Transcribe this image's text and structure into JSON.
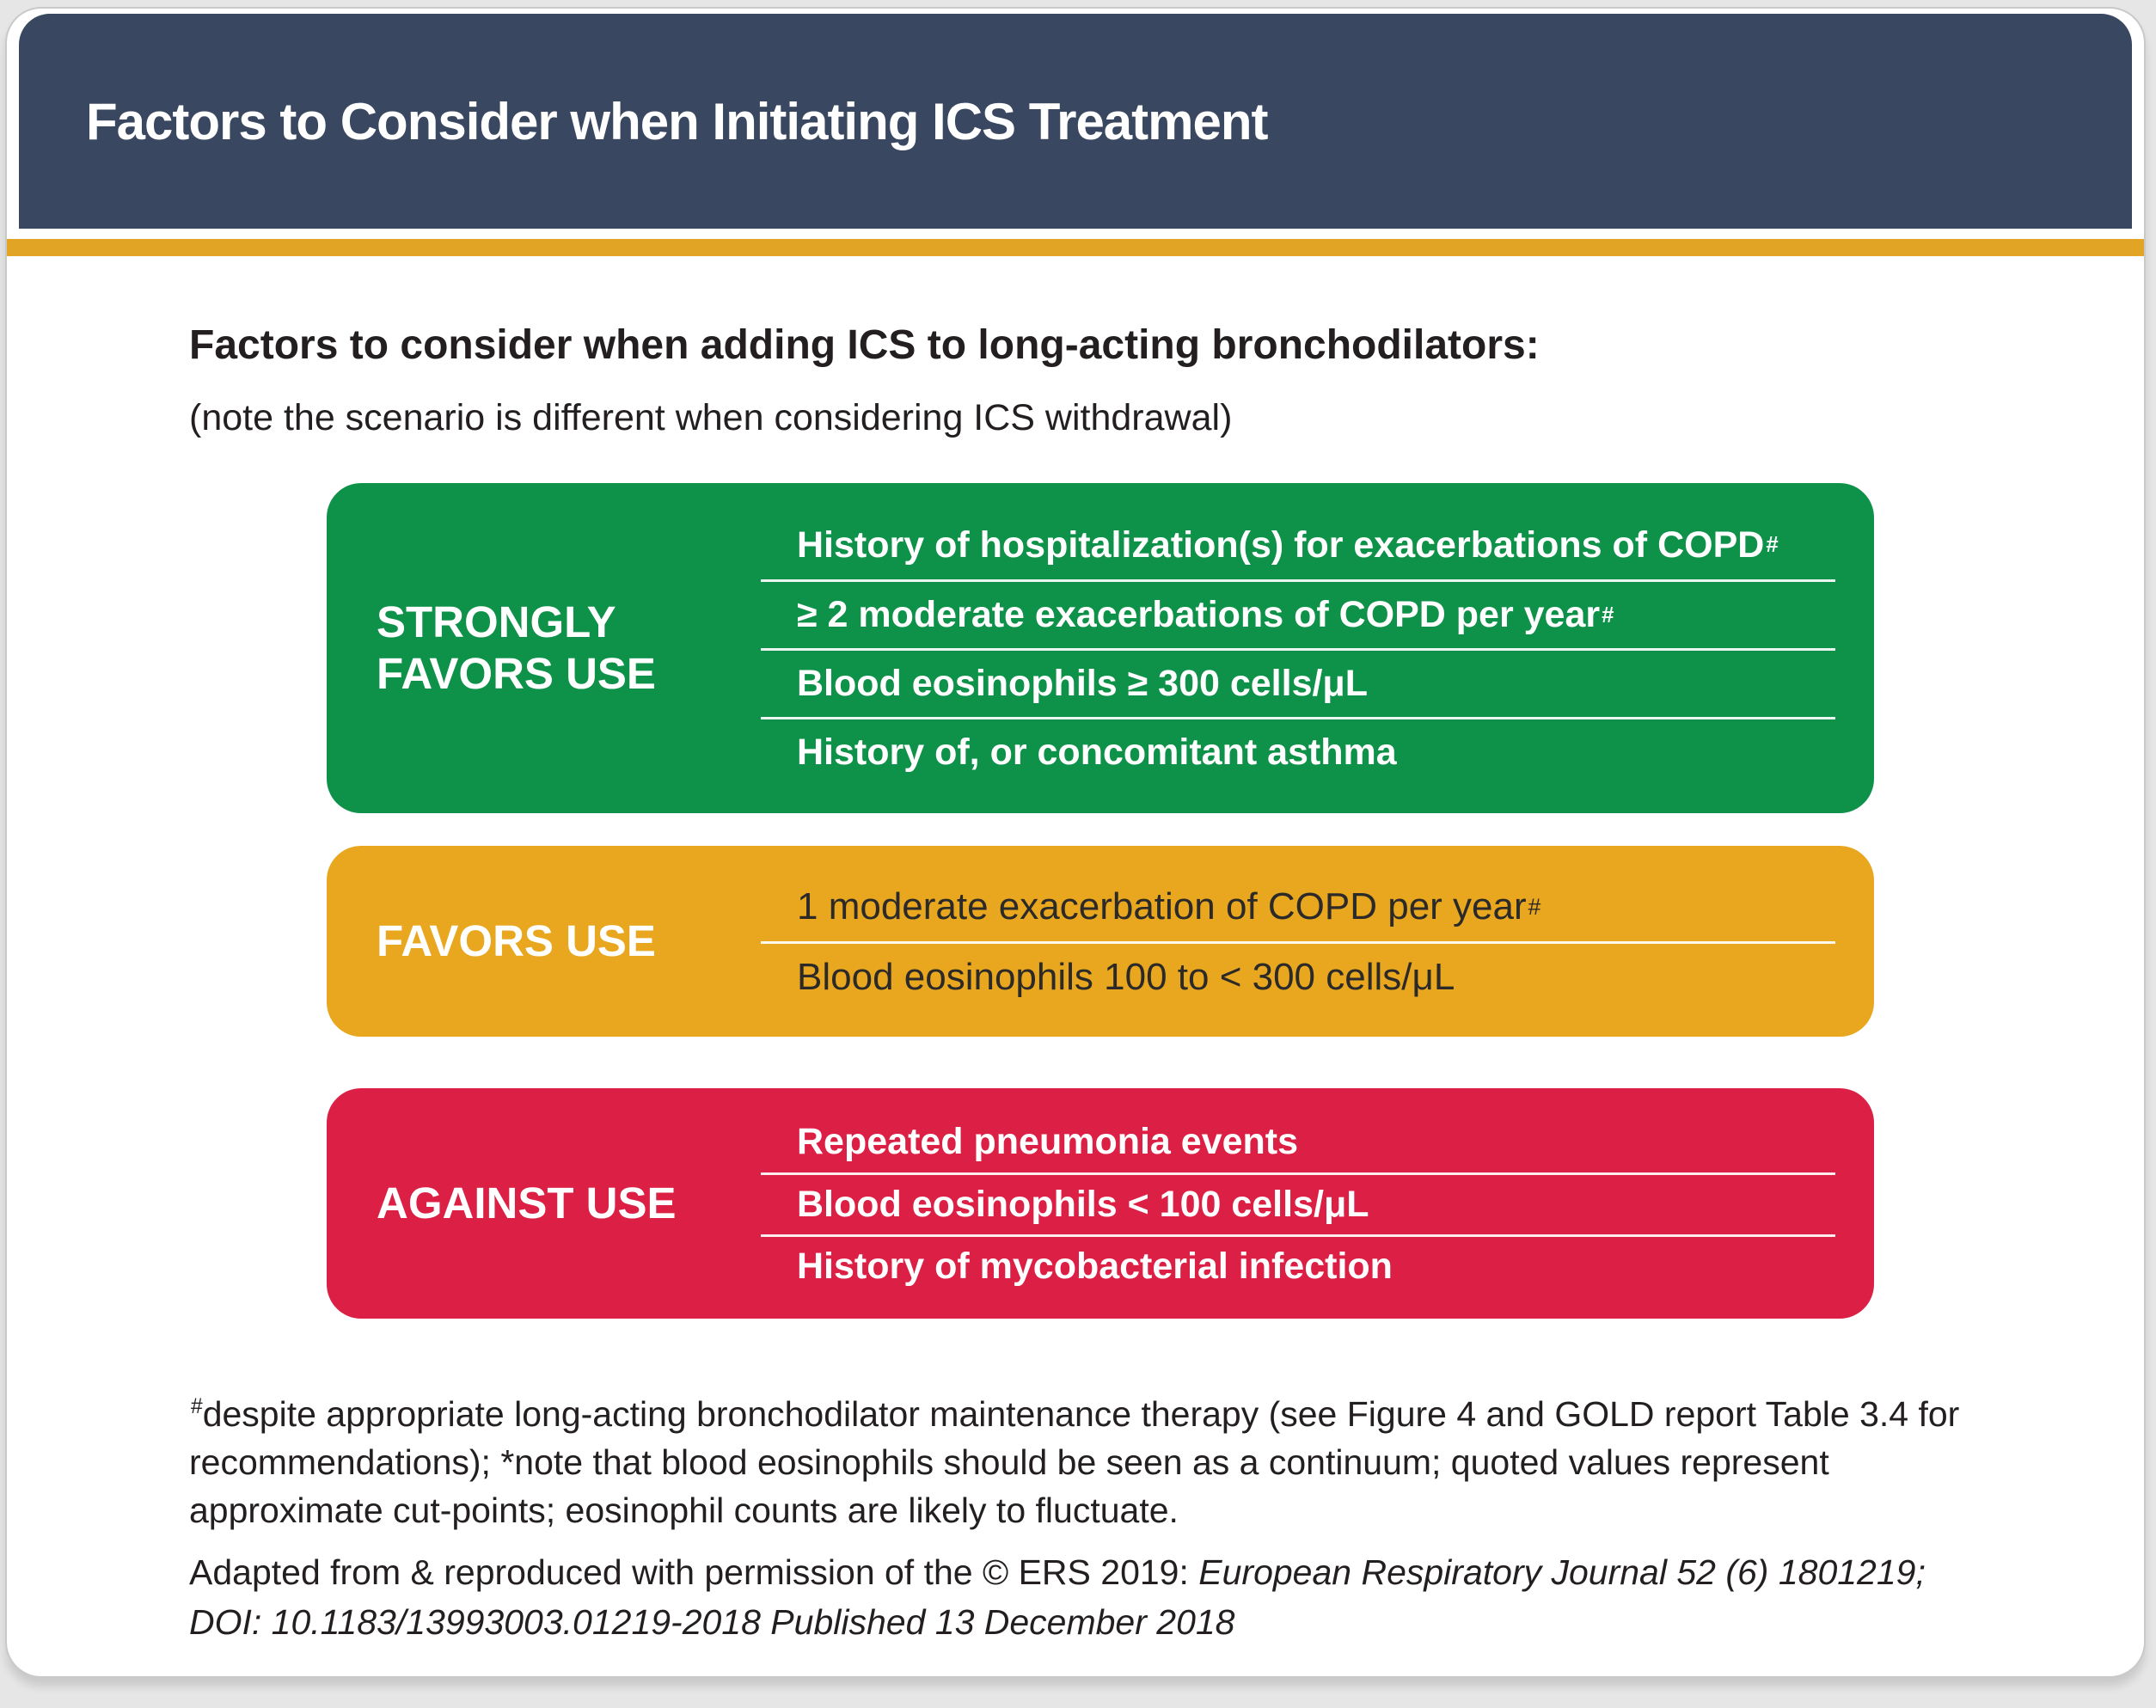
{
  "slide": {
    "title": "Factors to Consider when Initiating ICS Treatment",
    "heading": "Factors to consider when adding ICS to long-acting bronchodilators:",
    "note": "(note the scenario is different when considering ICS withdrawal)"
  },
  "categories": [
    {
      "label": "STRONGLY FAVORS USE",
      "color": "#0E9148",
      "items": [
        {
          "text": "History of hospitalization(s) for exacerbations of COPD",
          "sup": "#"
        },
        {
          "text": "≥ 2 moderate exacerbations of COPD per year",
          "sup": "#"
        },
        {
          "text": "Blood eosinophils ≥ 300 cells/μL",
          "sup": ""
        },
        {
          "text": "History of, or concomitant asthma",
          "sup": ""
        }
      ]
    },
    {
      "label": "FAVORS USE",
      "color": "#E8A71F",
      "items": [
        {
          "text": "1 moderate exacerbation of COPD per year",
          "sup": "#"
        },
        {
          "text": "Blood eosinophils 100 to < 300 cells/μL",
          "sup": ""
        }
      ]
    },
    {
      "label": "AGAINST USE",
      "color": "#DC1F44",
      "items": [
        {
          "text": "Repeated pneumonia events",
          "sup": ""
        },
        {
          "text": "Blood eosinophils < 100 cells/μL",
          "sup": ""
        },
        {
          "text": "History of mycobacterial infection",
          "sup": ""
        }
      ]
    }
  ],
  "footnote": {
    "sup": "#",
    "text": "despite appropriate long-acting bronchodilator maintenance therapy (see Figure 4 and GOLD report Table 3.4 for recommendations); *note that blood eosinophils should be seen as a continuum; quoted values represent approximate cut-points; eosinophil counts are likely to fluctuate."
  },
  "attribution": {
    "prefix": "Adapted from & reproduced with permission of the © ERS 2019: ",
    "citation": "European Respiratory Journal 52 (6) 1801219; DOI: 10.1183/13993003.01219-2018 Published 13 December 2018"
  },
  "colors": {
    "header_bg": "#394760",
    "accent_bar": "#E2A424",
    "body_text": "#231F20"
  }
}
